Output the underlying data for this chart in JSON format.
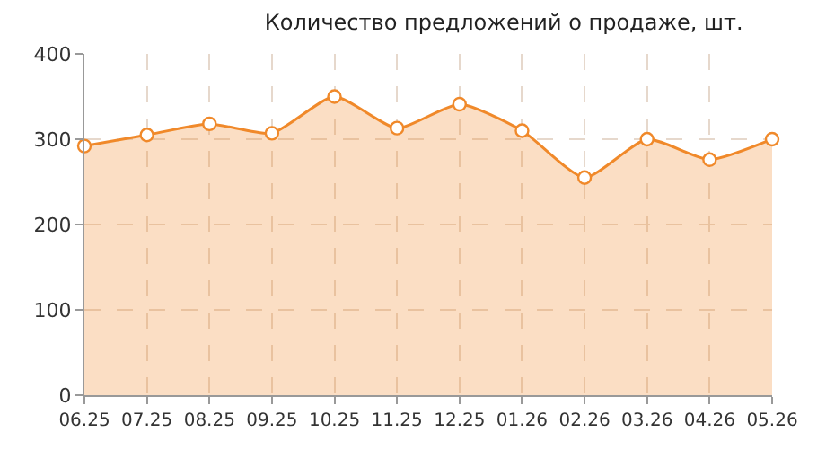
{
  "chart_data": {
    "type": "area",
    "title": "Количество предложений о продаже, шт.",
    "categories": [
      "06.25",
      "07.25",
      "08.25",
      "09.25",
      "10.25",
      "11.25",
      "12.25",
      "01.26",
      "02.26",
      "03.26",
      "04.26",
      "05.26"
    ],
    "series": [
      {
        "color": "#f0892a",
        "values": [
          292,
          305,
          318,
          307,
          350,
          313,
          341,
          310,
          255,
          300,
          276,
          300
        ]
      }
    ],
    "ylim": [
      0,
      400
    ],
    "yticks": [
      0,
      100,
      200,
      300,
      400
    ],
    "grid": true,
    "marker": "circle",
    "line_style": "solid"
  }
}
